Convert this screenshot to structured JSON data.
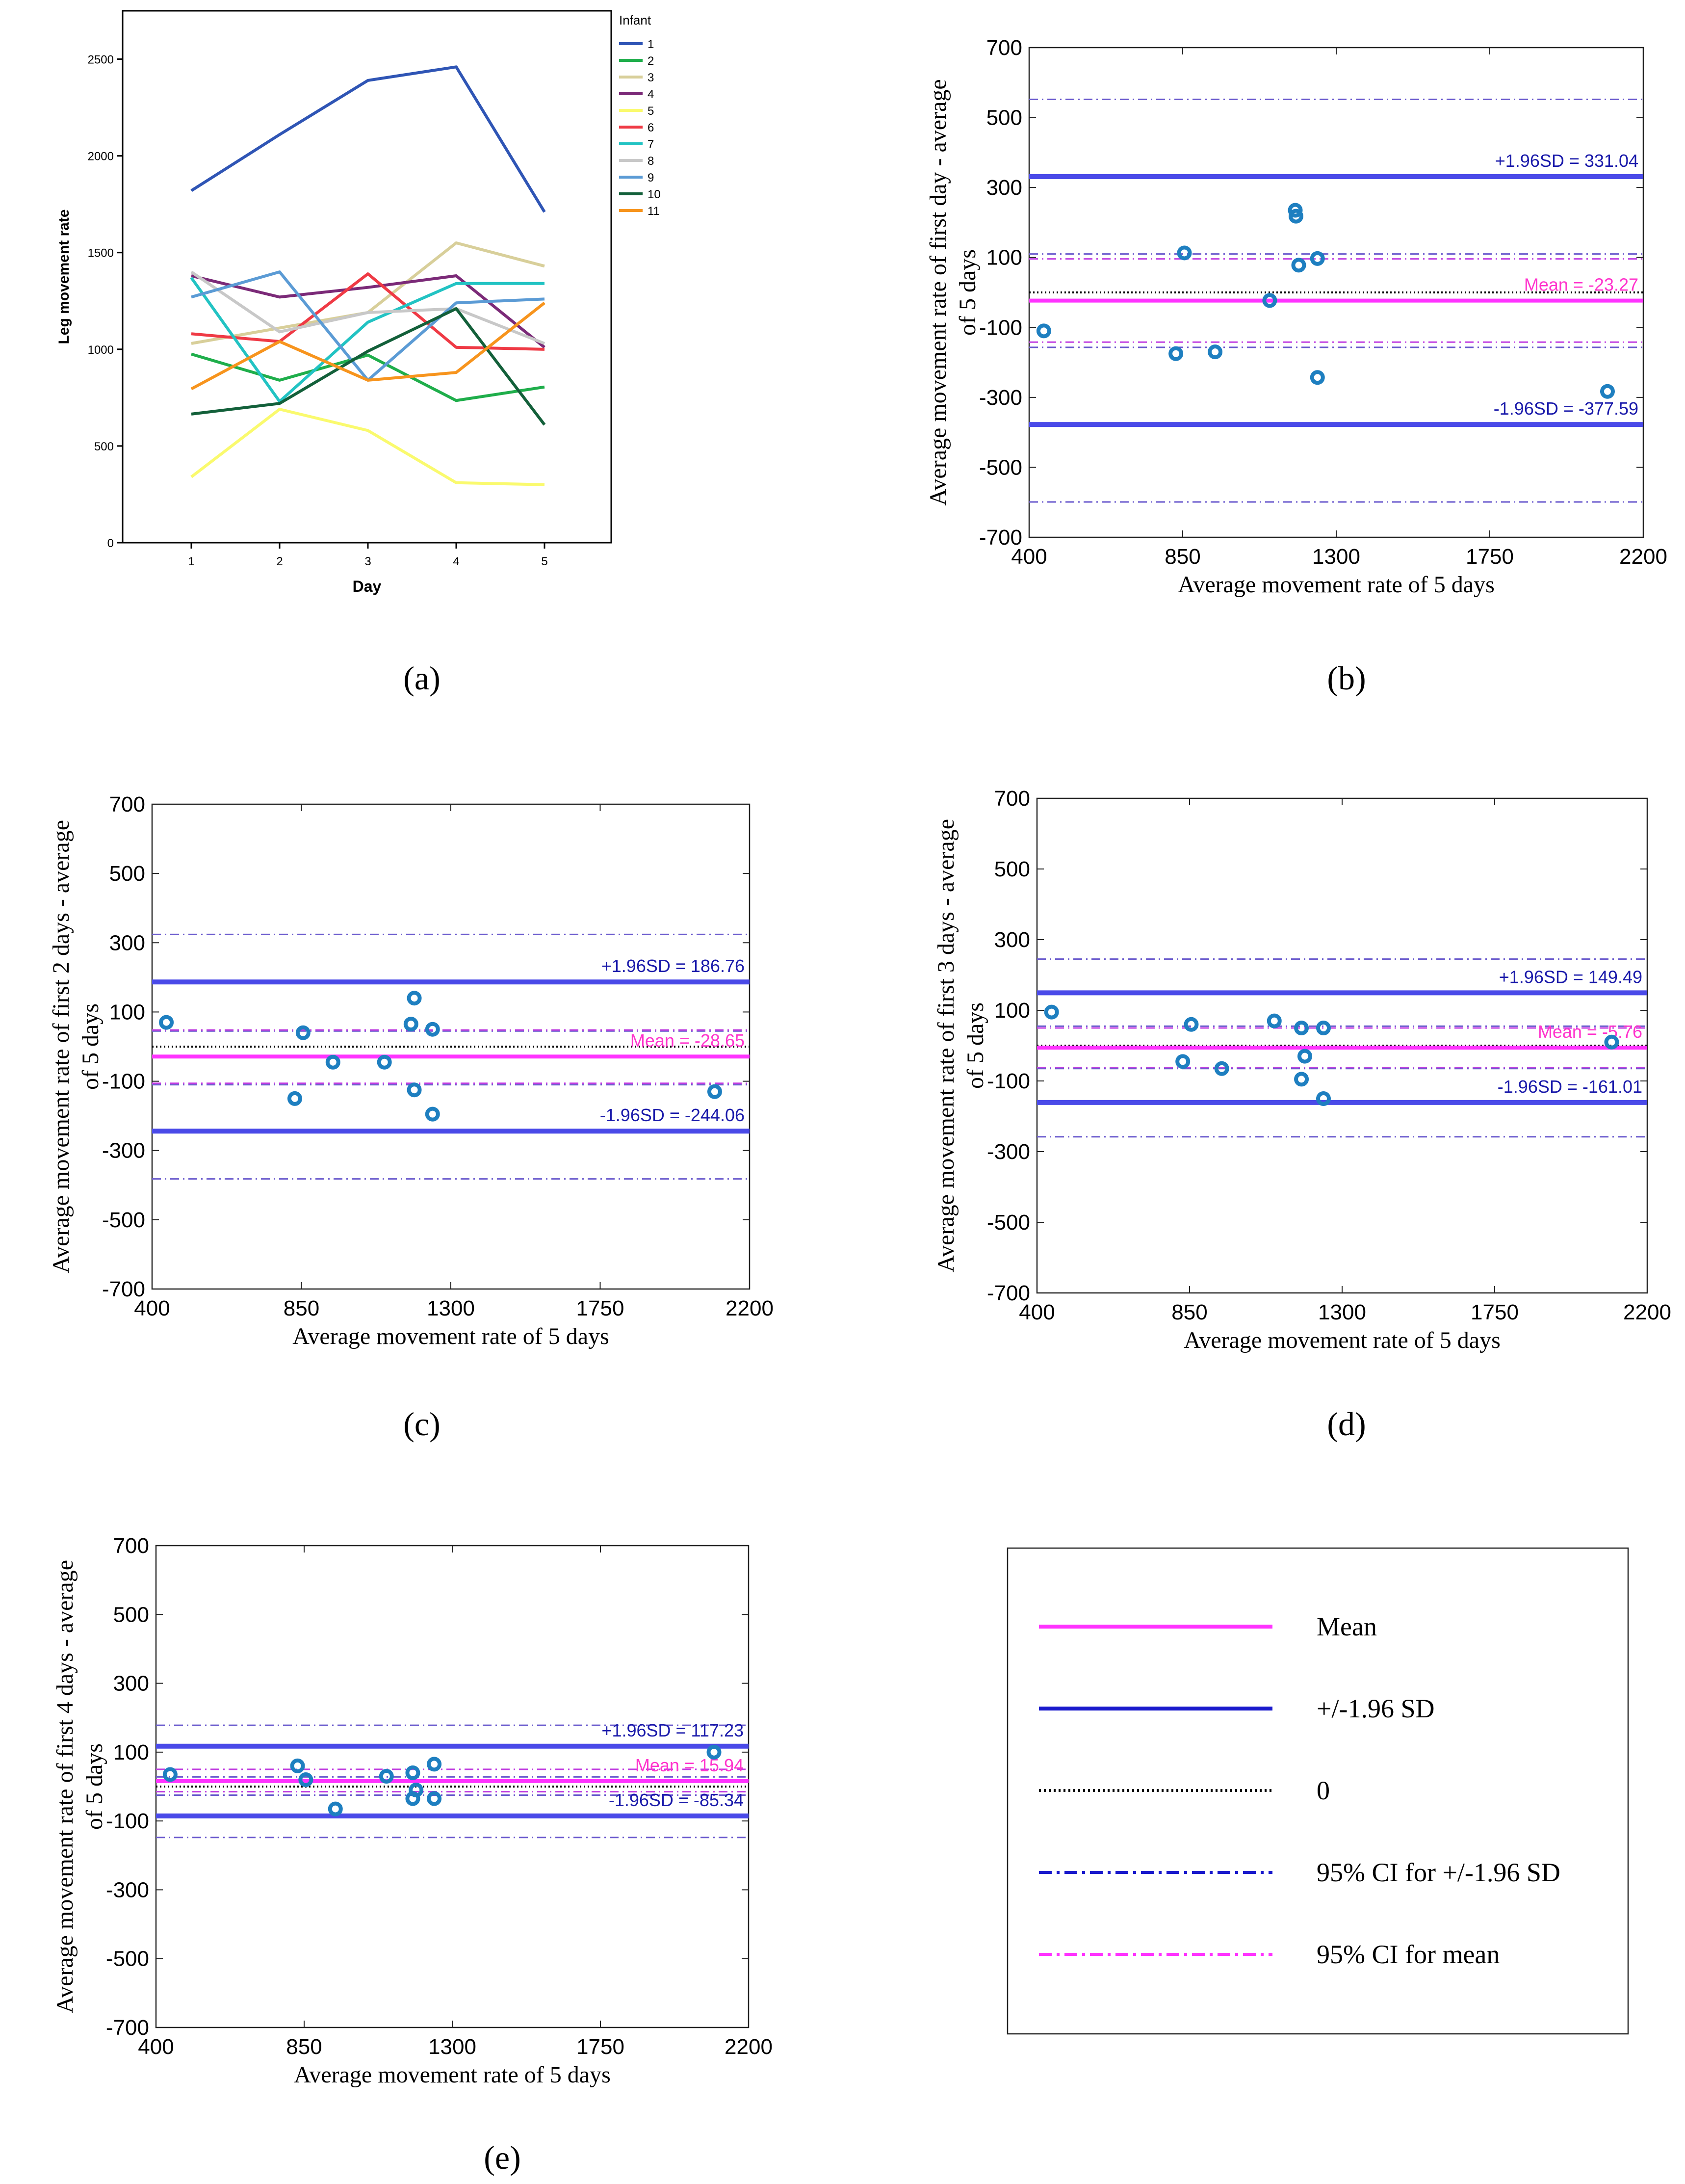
{
  "colors": {
    "mean": "#ff33ff",
    "sd": "#4a4ae8",
    "ci": "#6a5acd",
    "zero": "#000000",
    "point": "#1e7fc0",
    "sd_text": "#1a1aaa",
    "mean_text": "#ff33cc"
  },
  "chart_data": [
    {
      "id": "a",
      "type": "line",
      "panel_label": "a",
      "xlabel": "Day",
      "ylabel": "Leg movement rate",
      "x": [
        1,
        2,
        3,
        4,
        5
      ],
      "xticks": [
        "1",
        "2",
        "3",
        "4",
        "5"
      ],
      "yticks": [
        "0",
        "500",
        "1000",
        "1500",
        "2000",
        "2500"
      ],
      "ylim": [
        0,
        2750
      ],
      "legend_title": "Infant",
      "legend_position": "right",
      "series": [
        {
          "name": "1",
          "color": "#2f55b5",
          "values": [
            1820,
            2110,
            2390,
            2460,
            1710
          ]
        },
        {
          "name": "2",
          "color": "#1fae4b",
          "values": [
            975,
            840,
            970,
            735,
            805
          ]
        },
        {
          "name": "3",
          "color": "#d8cf9a",
          "values": [
            1030,
            1110,
            1190,
            1550,
            1430
          ]
        },
        {
          "name": "4",
          "color": "#7b2a78",
          "values": [
            1380,
            1270,
            1320,
            1380,
            1010
          ]
        },
        {
          "name": "5",
          "color": "#fafa6e",
          "values": [
            340,
            690,
            580,
            310,
            300
          ]
        },
        {
          "name": "6",
          "color": "#ef3a45",
          "values": [
            1080,
            1040,
            1390,
            1010,
            1000
          ]
        },
        {
          "name": "7",
          "color": "#22c3c3",
          "values": [
            1370,
            730,
            1140,
            1340,
            1340
          ]
        },
        {
          "name": "8",
          "color": "#c8c8c8",
          "values": [
            1400,
            1090,
            1190,
            1210,
            1030
          ]
        },
        {
          "name": "9",
          "color": "#5b9bd5",
          "values": [
            1270,
            1400,
            840,
            1240,
            1260
          ]
        },
        {
          "name": "10",
          "color": "#13603a",
          "values": [
            665,
            720,
            990,
            1210,
            610
          ]
        },
        {
          "name": "11",
          "color": "#f7941d",
          "values": [
            795,
            1040,
            840,
            880,
            1240
          ]
        }
      ]
    },
    {
      "id": "b",
      "type": "scatter",
      "panel_label": "b",
      "xlabel": "Average movement rate of 5 days",
      "ylabel_1": "Average movement rate of first day - average",
      "ylabel_2": "of 5 days",
      "xlim": [
        400,
        2200
      ],
      "ylim": [
        -700,
        700
      ],
      "xticks": [
        "400",
        "850",
        "1300",
        "1750",
        "2200"
      ],
      "yticks": [
        "700",
        "500",
        "300",
        "100",
        "-100",
        "-300",
        "-500",
        "-700"
      ],
      "mean": -23.27,
      "upper_sd": 331.04,
      "lower_sd": -377.59,
      "upper_sd_ci": [
        110,
        552
      ],
      "lower_sd_ci": [
        -157,
        -599
      ],
      "mean_ci": [
        -142,
        96
      ],
      "mean_label": "Mean = -23.27",
      "upper_label": "+1.96SD = 331.04",
      "lower_label": "-1.96SD = -377.59",
      "points": [
        [
          443,
          -110
        ],
        [
          830,
          -175
        ],
        [
          855,
          113
        ],
        [
          945,
          -170
        ],
        [
          1105,
          -23
        ],
        [
          1180,
          235
        ],
        [
          1182,
          218
        ],
        [
          1190,
          78
        ],
        [
          1245,
          97
        ],
        [
          1245,
          -243
        ],
        [
          2095,
          -283
        ]
      ]
    },
    {
      "id": "c",
      "type": "scatter",
      "panel_label": "c",
      "xlabel": "Average movement rate of 5 days",
      "ylabel_1": "Average movement rate of first 2 days - average",
      "ylabel_2": "of 5 days",
      "xlim": [
        400,
        2200
      ],
      "ylim": [
        -700,
        700
      ],
      "xticks": [
        "400",
        "850",
        "1300",
        "1750",
        "2200"
      ],
      "yticks": [
        "700",
        "500",
        "300",
        "100",
        "-100",
        "-300",
        "-500",
        "-700"
      ],
      "mean": -28.65,
      "upper_sd": 186.76,
      "lower_sd": -244.06,
      "upper_sd_ci": [
        45,
        324
      ],
      "lower_sd_ci": [
        -110,
        -382
      ],
      "mean_ci": [
        -106,
        48
      ],
      "mean_label": "Mean = -28.65",
      "upper_label": "+1.96SD = 186.76",
      "lower_label": "-1.96SD = -244.06",
      "points": [
        [
          443,
          70
        ],
        [
          830,
          -150
        ],
        [
          855,
          40
        ],
        [
          945,
          -45
        ],
        [
          1100,
          -45
        ],
        [
          1180,
          65
        ],
        [
          1190,
          140
        ],
        [
          1190,
          -125
        ],
        [
          1245,
          50
        ],
        [
          1245,
          -195
        ],
        [
          2095,
          -130
        ]
      ]
    },
    {
      "id": "d",
      "type": "scatter",
      "panel_label": "d",
      "xlabel": "Average movement rate of 5 days",
      "ylabel_1": "Average movement rate of first 3 days - average",
      "ylabel_2": "of 5 days",
      "xlim": [
        400,
        2200
      ],
      "ylim": [
        -700,
        700
      ],
      "xticks": [
        "400",
        "850",
        "1300",
        "1750",
        "2200"
      ],
      "yticks": [
        "700",
        "500",
        "300",
        "100",
        "-100",
        "-300",
        "-500",
        "-700"
      ],
      "mean": -5.76,
      "upper_sd": 149.49,
      "lower_sd": -161.01,
      "upper_sd_ci": [
        55,
        245
      ],
      "lower_sd_ci": [
        -65,
        -258
      ],
      "mean_ci": [
        -62,
        50
      ],
      "mean_label": "Mean = -5.76",
      "upper_label": "+1.96SD = 149.49",
      "lower_label": "-1.96SD = -161.01",
      "points": [
        [
          443,
          95
        ],
        [
          830,
          -45
        ],
        [
          855,
          60
        ],
        [
          945,
          -65
        ],
        [
          1100,
          70
        ],
        [
          1180,
          50
        ],
        [
          1190,
          -30
        ],
        [
          1180,
          -95
        ],
        [
          1245,
          50
        ],
        [
          1245,
          -150
        ],
        [
          2095,
          10
        ]
      ]
    },
    {
      "id": "e",
      "type": "scatter",
      "panel_label": "e",
      "xlabel": "Average movement rate of 5 days",
      "ylabel_1": "Average movement rate of first 4 days - average",
      "ylabel_2": "of 5 days",
      "xlim": [
        400,
        2200
      ],
      "ylim": [
        -700,
        700
      ],
      "xticks": [
        "400",
        "850",
        "1300",
        "1750",
        "2200"
      ],
      "yticks": [
        "700",
        "500",
        "300",
        "100",
        "-100",
        "-300",
        "-500",
        "-700"
      ],
      "mean": 15.94,
      "upper_sd": 117.23,
      "lower_sd": -85.34,
      "upper_sd_ci": [
        28,
        178
      ],
      "lower_sd_ci": [
        -25,
        -148
      ],
      "mean_ci": [
        -15,
        50
      ],
      "mean_label": "Mean = 15.94",
      "upper_label": "+1.96SD = 117.23",
      "lower_label": "-1.96SD = -85.34",
      "points": [
        [
          443,
          35
        ],
        [
          830,
          60
        ],
        [
          855,
          20
        ],
        [
          945,
          -65
        ],
        [
          1100,
          30
        ],
        [
          1180,
          40
        ],
        [
          1190,
          -10
        ],
        [
          1180,
          -35
        ],
        [
          1245,
          65
        ],
        [
          1245,
          -35
        ],
        [
          2095,
          100
        ]
      ]
    }
  ],
  "legend": {
    "items": [
      {
        "label": "Mean",
        "style": "solid",
        "color": "#ff33ff"
      },
      {
        "label": "+/-1.96 SD",
        "style": "solid",
        "color": "#1a1acc"
      },
      {
        "label": "0",
        "style": "dotted",
        "color": "#000000"
      },
      {
        "label": "95% CI for +/-1.96 SD",
        "style": "dashdot",
        "color": "#1a1acc"
      },
      {
        "label": "95% CI for mean",
        "style": "dashdot",
        "color": "#ff33ff"
      }
    ]
  }
}
